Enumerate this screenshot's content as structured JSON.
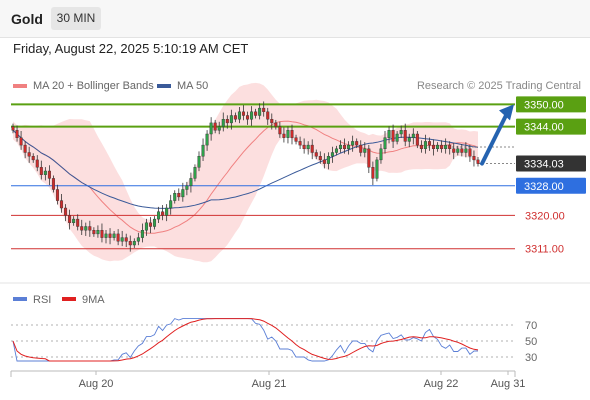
{
  "header": {
    "symbol": "Gold",
    "timeframe": "30 MIN"
  },
  "timestamp": "Friday, August 22, 2025 5:10:19 AM CET",
  "source": "Research © 2025 Trading Central",
  "legend": {
    "price": [
      {
        "label": "MA 20 + Bollinger Bands",
        "color": "#f08080"
      },
      {
        "label": "MA 50",
        "color": "#3a5a99"
      }
    ],
    "rsi": [
      {
        "label": "RSI",
        "color": "#5b7fd6"
      },
      {
        "label": "9MA",
        "color": "#e02020"
      }
    ]
  },
  "chart_data": [
    {
      "type": "candlestick",
      "x_axis_labels": [
        "Aug 20",
        "Aug 21",
        "Aug 22",
        "Aug 31"
      ],
      "ylim": [
        3302,
        3362
      ],
      "levels": [
        {
          "value": 3350.0,
          "label": "3350.00",
          "kind": "resistance",
          "color": "#5aa012"
        },
        {
          "value": 3344.0,
          "label": "3344.00",
          "kind": "resistance",
          "color": "#5aa012"
        },
        {
          "value": 3334.03,
          "label": "3334.03",
          "kind": "last-price",
          "color": "#333333"
        },
        {
          "value": 3328.0,
          "label": "3328.00",
          "kind": "pivot",
          "color": "#2e6fe0"
        },
        {
          "value": 3320.0,
          "label": "3320.00",
          "kind": "support",
          "color": "#d03030"
        },
        {
          "value": 3311.0,
          "label": "3311.00",
          "kind": "support",
          "color": "#d03030"
        }
      ],
      "forecast_arrow": {
        "from": 3334,
        "to": 3350
      },
      "close": [
        3343,
        3341,
        3339,
        3337,
        3336,
        3335,
        3333,
        3331,
        3332,
        3330,
        3327,
        3324,
        3322,
        3320,
        3318,
        3319,
        3317,
        3316,
        3317,
        3316,
        3315,
        3316,
        3314,
        3315,
        3314,
        3315,
        3313,
        3314,
        3313,
        3312,
        3313,
        3314,
        3316,
        3318,
        3317,
        3319,
        3321,
        3320,
        3322,
        3324,
        3326,
        3325,
        3327,
        3328,
        3330,
        3333,
        3336,
        3339,
        3342,
        3345,
        3343,
        3344,
        3346,
        3345,
        3347,
        3346,
        3348,
        3347,
        3346,
        3348,
        3347,
        3349,
        3348,
        3346,
        3345,
        3344,
        3342,
        3341,
        3343,
        3341,
        3340,
        3339,
        3338,
        3339,
        3337,
        3336,
        3335,
        3334,
        3336,
        3337,
        3338,
        3339,
        3338,
        3339,
        3340,
        3339,
        3337,
        3338,
        3333,
        3330,
        3335,
        3338,
        3341,
        3343,
        3340,
        3342,
        3343,
        3340,
        3341,
        3342,
        3339,
        3338,
        3340,
        3339,
        3338,
        3339,
        3338,
        3339,
        3338,
        3337,
        3338,
        3337,
        3338,
        3336,
        3335,
        3334
      ]
    },
    {
      "type": "line",
      "name": "RSI",
      "ylim": [
        20,
        80
      ],
      "y_ticks": [
        30,
        50,
        70
      ]
    }
  ]
}
